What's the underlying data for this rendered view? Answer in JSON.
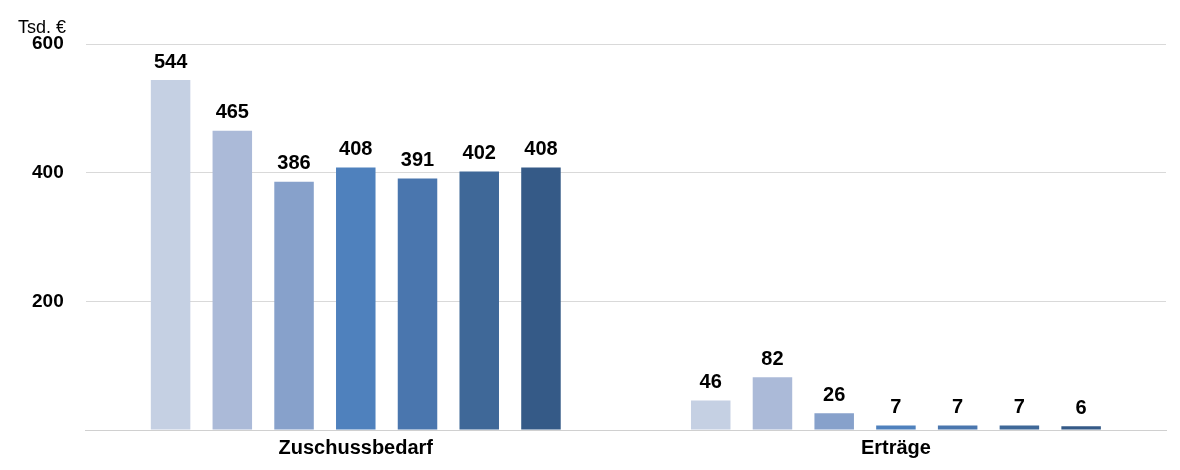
{
  "chart_data": {
    "type": "bar",
    "ylabel": "Tsd. €",
    "categories": [
      "Zuschussbedarf",
      "Erträge"
    ],
    "series": [
      {
        "color": "#c5d0e3",
        "values": [
          544,
          46
        ]
      },
      {
        "color": "#abbad8",
        "values": [
          465,
          82
        ]
      },
      {
        "color": "#87a1cb",
        "values": [
          386,
          26
        ]
      },
      {
        "color": "#4f81bd",
        "values": [
          408,
          7
        ]
      },
      {
        "color": "#4a76ae",
        "values": [
          391,
          7
        ]
      },
      {
        "color": "#3f6898",
        "values": [
          402,
          7
        ]
      },
      {
        "color": "#355a87",
        "values": [
          408,
          6
        ]
      }
    ],
    "ylim": [
      0,
      600
    ],
    "yticks": [
      {
        "value": 0,
        "label": null
      },
      200,
      400,
      600
    ],
    "grid": "y",
    "data_labels": true,
    "legend": false
  }
}
